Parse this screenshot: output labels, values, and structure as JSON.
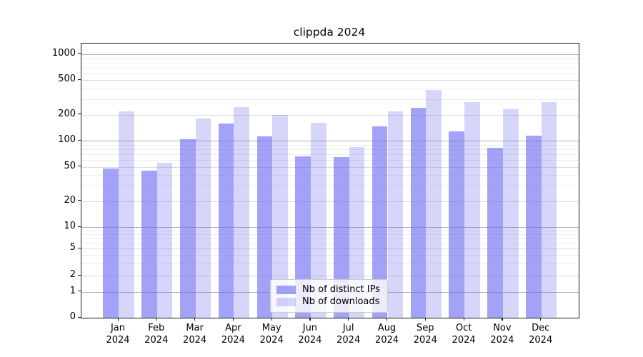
{
  "chart_data": {
    "type": "bar",
    "title": "clippda 2024",
    "categories": [
      "Jan",
      "Feb",
      "Mar",
      "Apr",
      "May",
      "Jun",
      "Jul",
      "Aug",
      "Sep",
      "Oct",
      "Nov",
      "Dec"
    ],
    "category_year_suffix": "2024",
    "series": [
      {
        "name": "Nb of distinct IPs",
        "color": "rgba(105,105,240,0.62)",
        "values": [
          48,
          45,
          103,
          159,
          112,
          66,
          65,
          145,
          239,
          129,
          83,
          114
        ]
      },
      {
        "name": "Nb of downloads",
        "color": "rgba(105,105,240,0.27)",
        "values": [
          218,
          56,
          182,
          242,
          200,
          161,
          85,
          218,
          388,
          280,
          232,
          277
        ]
      }
    ],
    "yscale": "symlog",
    "yticks": [
      0,
      1,
      2,
      5,
      10,
      20,
      50,
      100,
      200,
      500,
      1000
    ],
    "ylim": [
      0,
      1320
    ],
    "grid": true,
    "legend_position": "lower center"
  }
}
